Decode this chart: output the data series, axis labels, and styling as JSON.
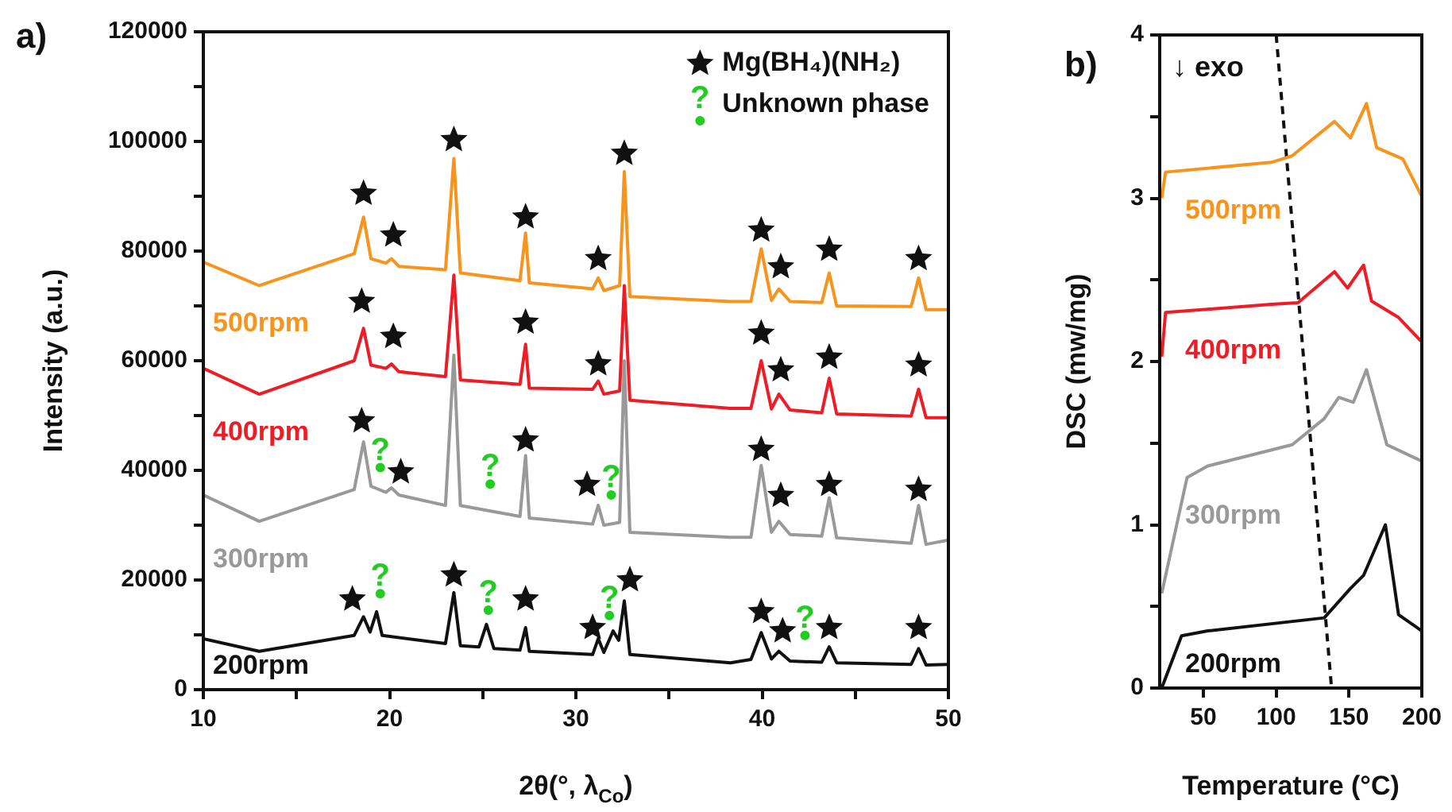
{
  "chart_data": [
    {
      "type": "line",
      "title": "a)",
      "xlabel": "2θ(°, λ$_{Co}$)",
      "ylabel": "Intensity (a.u.)",
      "xlim": [
        10,
        50
      ],
      "ylim": [
        0,
        120000
      ],
      "xticks": [
        10,
        {
          "value": 15,
          "label": null
        },
        20,
        {
          "value": 25,
          "label": null
        },
        30,
        {
          "value": 35,
          "label": null
        },
        40,
        {
          "value": 45,
          "label": null
        },
        50
      ],
      "yticks": [
        0,
        {
          "value": 10000,
          "label": null
        },
        20000,
        {
          "value": 30000,
          "label": null
        },
        40000,
        {
          "value": 50000,
          "label": null
        },
        60000,
        {
          "value": 70000,
          "label": null
        },
        80000,
        {
          "value": 90000,
          "label": null
        },
        100000,
        {
          "value": 110000,
          "label": null
        },
        120000
      ],
      "legend": "top right",
      "series": [
        {
          "type": "line",
          "name": "500rpm",
          "color": "#f7941d",
          "x": [
            10,
            13,
            18.1,
            18.6,
            19.0,
            19.8,
            20.1,
            20.5,
            23.0,
            23.45,
            23.8,
            27.0,
            27.3,
            27.5,
            30.9,
            31.2,
            31.5,
            32.35,
            32.6,
            32.9,
            38.3,
            39.4,
            39.95,
            40.5,
            40.9,
            41.5,
            43.2,
            43.6,
            44.0,
            48.0,
            48.4,
            48.8,
            50
          ],
          "values": [
            78000,
            73700,
            79500,
            86200,
            78600,
            77800,
            78600,
            77200,
            76600,
            96900,
            76000,
            74600,
            83300,
            74200,
            73100,
            75100,
            72800,
            73700,
            94500,
            71700,
            70800,
            70800,
            80400,
            71000,
            73100,
            70800,
            70600,
            76000,
            70000,
            69900,
            75100,
            69300,
            69300
          ]
        },
        {
          "type": "line",
          "name": "400rpm",
          "color": "#ee1c24",
          "x": [
            10,
            13,
            18.1,
            18.6,
            19.0,
            19.8,
            20.1,
            20.5,
            23.0,
            23.45,
            23.8,
            27.0,
            27.3,
            27.5,
            30.9,
            31.2,
            31.5,
            32.35,
            32.6,
            32.9,
            38.3,
            39.4,
            39.95,
            40.5,
            40.9,
            41.5,
            43.2,
            43.6,
            44.0,
            48.0,
            48.4,
            48.8,
            50
          ],
          "values": [
            58600,
            53900,
            60000,
            65900,
            59200,
            58600,
            59400,
            58000,
            57100,
            75600,
            56500,
            55700,
            63000,
            55000,
            54800,
            56300,
            53900,
            54500,
            73700,
            52800,
            51300,
            51300,
            60000,
            51200,
            53900,
            51000,
            50500,
            56800,
            50300,
            49900,
            54800,
            49600,
            49600
          ]
        },
        {
          "type": "line",
          "name": "300rpm",
          "color": "#999999",
          "x": [
            10,
            13,
            18.1,
            18.6,
            19.0,
            19.8,
            20.1,
            20.5,
            23.0,
            23.45,
            23.8,
            27.0,
            27.3,
            27.5,
            30.9,
            31.2,
            31.5,
            32.35,
            32.6,
            32.9,
            38.3,
            39.4,
            39.95,
            40.5,
            40.9,
            41.5,
            43.2,
            43.6,
            44.0,
            48.0,
            48.4,
            48.8,
            50
          ],
          "values": [
            35500,
            30700,
            36500,
            45200,
            37100,
            36000,
            36800,
            35500,
            33600,
            61000,
            33600,
            31600,
            42700,
            31300,
            30200,
            33600,
            30000,
            30500,
            60000,
            28700,
            27800,
            27800,
            40900,
            28700,
            30700,
            28300,
            28000,
            35000,
            27700,
            26700,
            33600,
            26500,
            27300
          ]
        },
        {
          "type": "line",
          "name": "200rpm",
          "color": "#111111",
          "x": [
            10,
            13,
            18.1,
            18.6,
            18.95,
            19.3,
            19.6,
            23.0,
            23.45,
            23.8,
            24.8,
            25.2,
            25.6,
            27.0,
            27.3,
            27.5,
            30.9,
            31.2,
            31.5,
            32.0,
            32.3,
            32.6,
            32.9,
            38.3,
            39.4,
            39.95,
            40.5,
            40.9,
            41.5,
            43.2,
            43.6,
            44.0,
            48.0,
            48.4,
            48.8,
            50
          ],
          "values": [
            9300,
            7000,
            9900,
            13300,
            10500,
            14200,
            9900,
            8400,
            17700,
            8000,
            7800,
            11900,
            7500,
            7200,
            11300,
            7000,
            6400,
            9300,
            6800,
            10700,
            9000,
            16200,
            6400,
            4900,
            5500,
            10400,
            5600,
            7000,
            5200,
            5000,
            7800,
            4900,
            4600,
            7500,
            4500,
            4600
          ]
        },
        {
          "type": "scatter",
          "name": "Mg(BH₄)(NH₂)",
          "color": "#111111",
          "marker": "star",
          "x": [
            18.6,
            20.2,
            23.45,
            27.3,
            31.2,
            32.6,
            39.95,
            41.0,
            43.6,
            48.4,
            18.5,
            20.2,
            27.3,
            31.2,
            39.95,
            41.0,
            43.6,
            48.4,
            18.5,
            20.6,
            27.3,
            30.6,
            39.95,
            41.0,
            43.6,
            48.4,
            18.0,
            23.45,
            27.3,
            30.9,
            32.9,
            39.95,
            41.1,
            43.6,
            48.4
          ],
          "values": [
            90500,
            82900,
            100300,
            86200,
            78600,
            97800,
            83800,
            77100,
            80300,
            78600,
            70800,
            64400,
            67000,
            59400,
            65000,
            58300,
            60600,
            59200,
            49000,
            39700,
            45500,
            37400,
            43800,
            35400,
            37400,
            36500,
            16500,
            20900,
            16500,
            11300,
            20000,
            14200,
            10700,
            11300,
            11300
          ]
        },
        {
          "type": "scatter",
          "name": "Unknown phase",
          "color": "#22cc22",
          "x": [
            19.5,
            25.4,
            31.9,
            19.5,
            25.3,
            31.8,
            42.3
          ],
          "values": [
            40500,
            37500,
            35500,
            17500,
            14500,
            13500,
            9900
          ],
          "value_labels": [
            "?",
            "?",
            "?",
            "?",
            "?",
            "?",
            "?"
          ]
        }
      ]
    },
    {
      "type": "line",
      "title": "b)",
      "xlabel": "Temperature (°C)",
      "ylabel": "DSC (mw/mg)",
      "xlim": [
        20,
        200
      ],
      "ylim": [
        0,
        4
      ],
      "xticks": [
        50,
        100,
        150,
        200
      ],
      "yticks": [
        0,
        {
          "value": 0.5,
          "label": null
        },
        1,
        {
          "value": 1.5,
          "label": null
        },
        2,
        {
          "value": 2.5,
          "label": null
        },
        3,
        {
          "value": 3.5,
          "label": null
        },
        4
      ],
      "annotations": [
        "↓ exo"
      ],
      "series": [
        {
          "type": "line",
          "name": "500rpm",
          "color": "#f7941d",
          "x": [
            21.4,
            24,
            96.7,
            111,
            140,
            151,
            162,
            169,
            187,
            200
          ],
          "values": [
            3.0,
            3.16,
            3.22,
            3.26,
            3.47,
            3.37,
            3.58,
            3.31,
            3.24,
            3.01
          ]
        },
        {
          "type": "line",
          "name": "400rpm",
          "color": "#ee1c24",
          "x": [
            21.4,
            24,
            96.7,
            115,
            140,
            149,
            160,
            165.5,
            184,
            200
          ],
          "values": [
            2.03,
            2.3,
            2.35,
            2.36,
            2.55,
            2.45,
            2.59,
            2.37,
            2.27,
            2.12
          ]
        },
        {
          "type": "line",
          "name": "300rpm",
          "color": "#999999",
          "x": [
            21.4,
            38.8,
            53,
            111,
            133,
            143,
            153,
            162,
            176,
            200
          ],
          "values": [
            0.58,
            1.29,
            1.36,
            1.49,
            1.65,
            1.78,
            1.75,
            1.95,
            1.49,
            1.39
          ]
        },
        {
          "type": "line",
          "name": "200rpm",
          "color": "#111111",
          "x": [
            21.4,
            35,
            53,
            133,
            151,
            160,
            175,
            184,
            200
          ],
          "values": [
            0,
            0.32,
            0.35,
            0.43,
            0.61,
            0.69,
            1.0,
            0.45,
            0.35
          ]
        },
        {
          "type": "line",
          "color": "#111111",
          "line_style": "dashed",
          "x": [
            100,
            138
          ],
          "values": [
            4,
            0
          ]
        }
      ]
    }
  ]
}
